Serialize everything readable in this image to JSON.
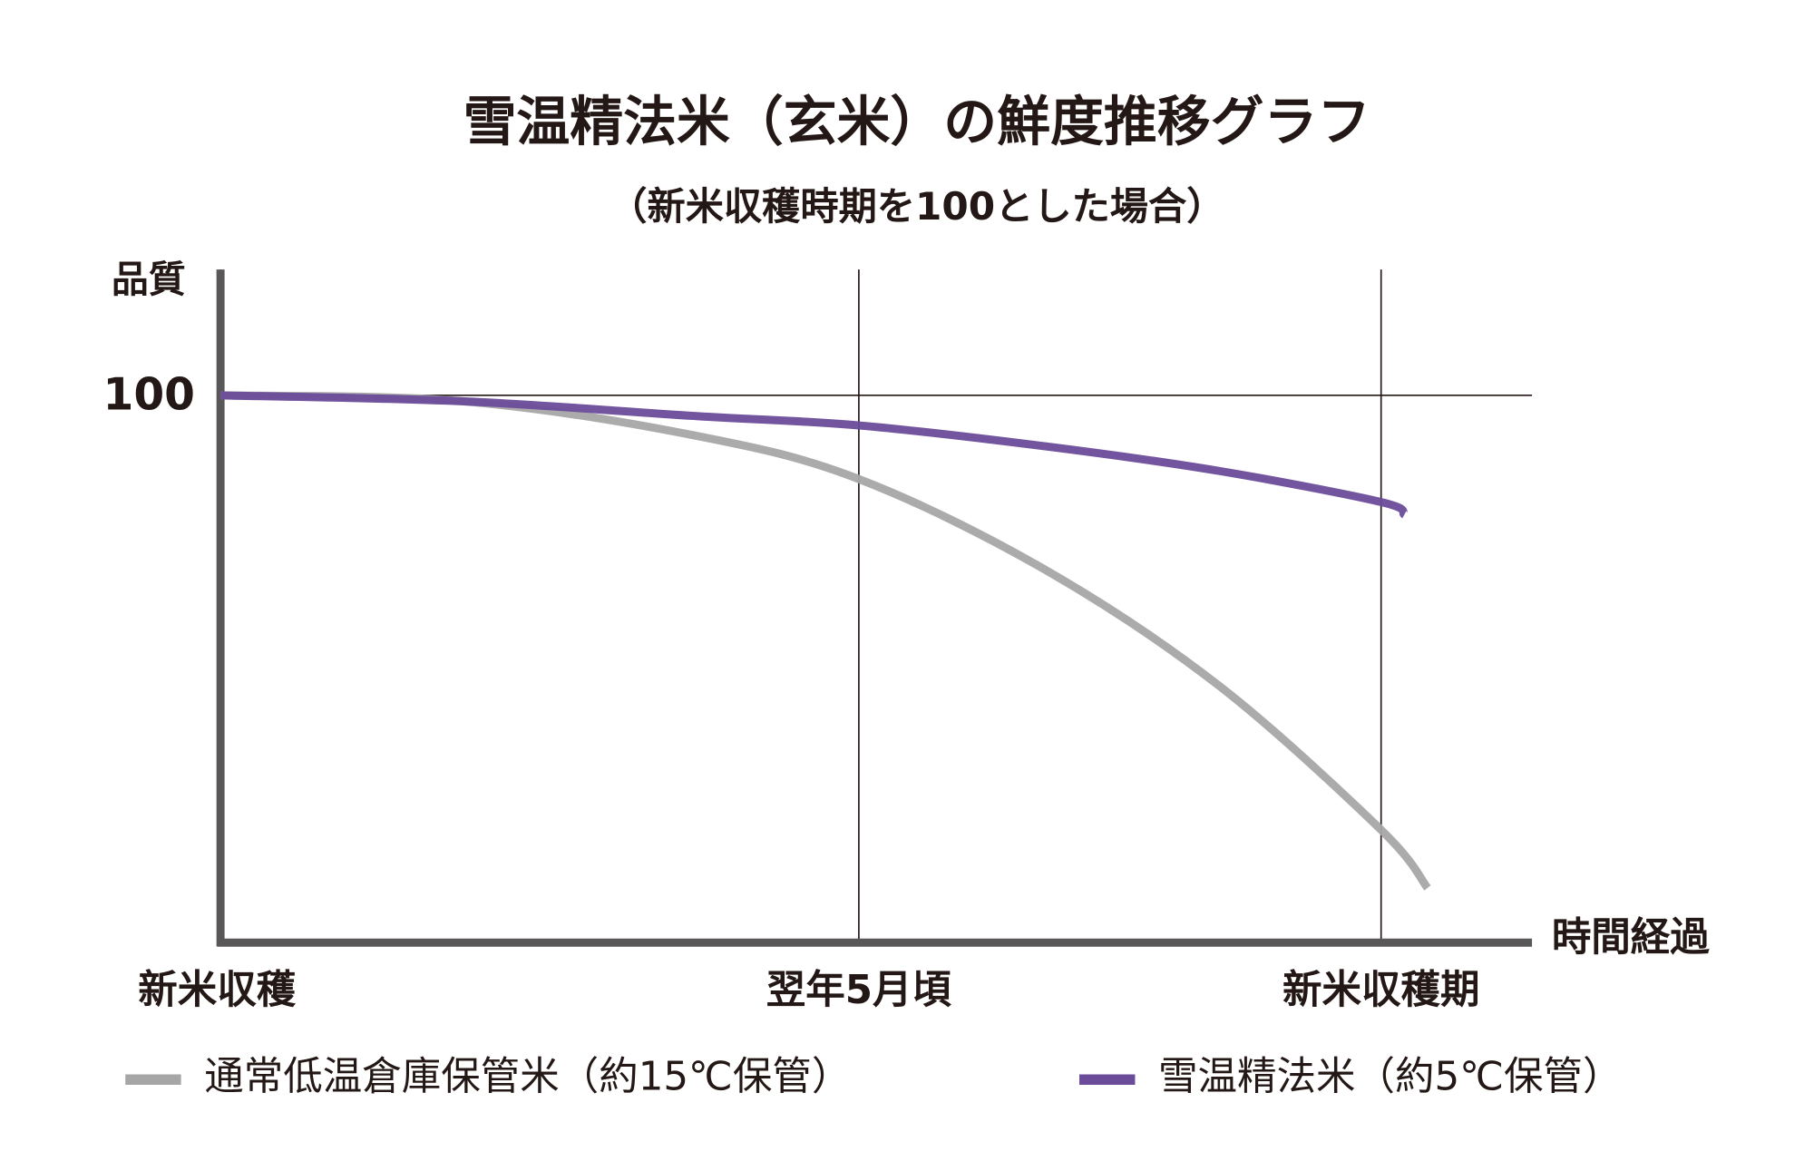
{
  "chart_data": {
    "type": "line",
    "title": "雪温精法米（玄米）の鮮度推移グラフ",
    "subtitle": "（新米収穫時期を100とした場合）",
    "y_label": "品質",
    "x_label": "時間経過",
    "xlim": [
      0,
      113
    ],
    "xticks": [
      {
        "value": 0,
        "label": "新米収穫"
      },
      {
        "value": 55,
        "label": "翌年5月頃"
      },
      {
        "value": 100,
        "label": "新米収穫期"
      }
    ],
    "ylim": [
      0,
      123
    ],
    "yticks": [
      100
    ],
    "grid": true,
    "legend": "bottom",
    "series": [
      {
        "name": "通常低温倉庫保管米（約15℃保管）",
        "color": "#a6a6a6",
        "x": [
          0,
          21,
          41,
          55,
          71,
          86,
          100,
          104
        ],
        "values": [
          100,
          98.9,
          92.6,
          84.7,
          68.2,
          47.0,
          20.6,
          10.0
        ]
      },
      {
        "name": "雪温精法米（約5℃保管）",
        "color": "#6b4c9a",
        "x": [
          0,
          21,
          41,
          55,
          71,
          86,
          100,
          102
        ],
        "values": [
          100,
          98.9,
          96.2,
          94.5,
          90.7,
          86.2,
          80.5,
          78.2
        ]
      }
    ]
  }
}
